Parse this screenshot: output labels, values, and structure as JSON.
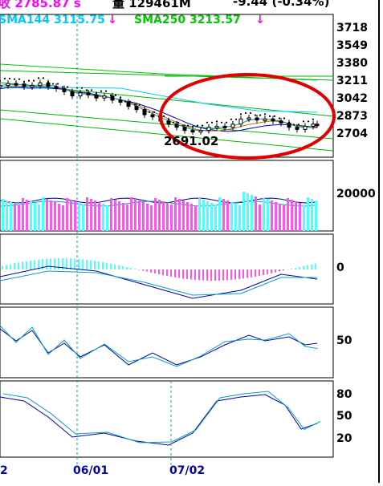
{
  "header": {
    "close_fragment": "收 2785.87 s",
    "volume_fragment": "量 129461M",
    "change_fragment": "-9.44 (-0.34%)",
    "sma144_label": "SMA144 3115.75",
    "sma250_label": "SMA250 3213.57",
    "arrow": "↓"
  },
  "colors": {
    "header_close": "#ff00ff",
    "header_text": "#000000",
    "sma144": "#00c8ff",
    "sma250": "#00c800",
    "arrow": "#ff00ff",
    "up_bar": "#4dffff",
    "down_bar": "#ff55ee",
    "candle": "#000000",
    "circle": "#e00000",
    "axis": "#0000aa",
    "vline": "#00a0c0"
  },
  "chart_data": [
    {
      "type": "line",
      "panel": "price",
      "y_ticks": [
        "3718",
        "3549",
        "3380",
        "3211",
        "3042",
        "2873",
        "2704"
      ],
      "annotation": "2691.02",
      "annotation_shape": "red ellipse around recent lows",
      "series": [
        {
          "name": "Close",
          "x": [
            0,
            10,
            20,
            30,
            40,
            50,
            60,
            70,
            80,
            90,
            100,
            110,
            120,
            130,
            140,
            150,
            160,
            170,
            180,
            190,
            200,
            210,
            220,
            230,
            240,
            250,
            260,
            270,
            280,
            290,
            300,
            310,
            320,
            330,
            340,
            350,
            360,
            370,
            380,
            390,
            395
          ],
          "values": [
            3160,
            3180,
            3175,
            3150,
            3160,
            3185,
            3150,
            3130,
            3100,
            3060,
            3090,
            3070,
            3040,
            3060,
            3020,
            3000,
            2960,
            2930,
            2880,
            2860,
            2820,
            2790,
            2760,
            2730,
            2720,
            2730,
            2760,
            2770,
            2760,
            2790,
            2840,
            2850,
            2830,
            2840,
            2820,
            2800,
            2760,
            2740,
            2770,
            2790,
            2785.87
          ]
        },
        {
          "name": "SMA144",
          "values": [
            3115.75
          ]
        },
        {
          "name": "SMA250",
          "values": [
            3213.57
          ]
        }
      ]
    },
    {
      "type": "bar",
      "panel": "volume",
      "y_ticks": [
        "20000"
      ],
      "note": "volume bars, cyan up / magenta down"
    },
    {
      "type": "bar",
      "panel": "macd",
      "y_ticks": [
        "0"
      ]
    },
    {
      "type": "line",
      "panel": "oscillator",
      "y_ticks": [
        "50"
      ]
    },
    {
      "type": "line",
      "panel": "stochastic",
      "y_ticks": [
        "80",
        "50",
        "20"
      ]
    }
  ],
  "x_axis": {
    "labels": [
      "2",
      "06/01",
      "07/02"
    ]
  }
}
